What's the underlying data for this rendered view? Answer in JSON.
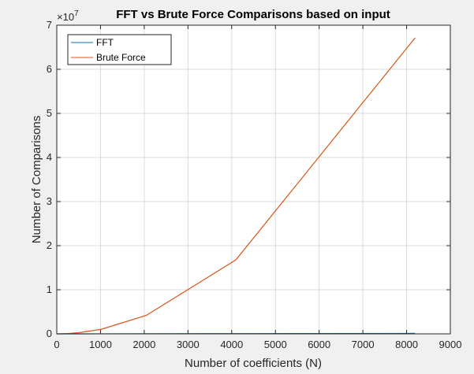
{
  "chart_data": {
    "type": "line",
    "title": "FFT vs Brute Force Comparisons based on input",
    "xlabel": "Number of coefficients (N)",
    "ylabel": "Number of Comparisons",
    "xlim": [
      0,
      9000
    ],
    "ylim": [
      0,
      70000000
    ],
    "xticks": [
      0,
      1000,
      2000,
      3000,
      4000,
      5000,
      6000,
      7000,
      8000,
      9000
    ],
    "xtick_labels": [
      "0",
      "1000",
      "2000",
      "3000",
      "4000",
      "5000",
      "6000",
      "7000",
      "8000",
      "9000"
    ],
    "yticks": [
      0,
      10000000,
      20000000,
      30000000,
      40000000,
      50000000,
      60000000,
      70000000
    ],
    "ytick_labels": [
      "0",
      "1",
      "2",
      "3",
      "4",
      "5",
      "6",
      "7"
    ],
    "y_exponent_base": "×10",
    "y_exponent_power": "7",
    "grid": true,
    "legend_position": "top-left",
    "series": [
      {
        "name": "FFT",
        "color": "#0072BD",
        "x": [
          2,
          4,
          8,
          16,
          32,
          64,
          128,
          256,
          512,
          1024,
          2048,
          4096,
          8192
        ],
        "y": [
          2,
          8,
          24,
          64,
          160,
          384,
          896,
          2048,
          4608,
          10240,
          22528,
          49152,
          106496
        ]
      },
      {
        "name": "Brute Force",
        "color": "#D95319",
        "x": [
          2,
          4,
          8,
          16,
          32,
          64,
          128,
          256,
          512,
          1024,
          2048,
          4096,
          8192
        ],
        "y": [
          4,
          16,
          64,
          256,
          1024,
          4096,
          16384,
          65536,
          262144,
          1048576,
          4194304,
          16777216,
          67108864
        ]
      }
    ]
  }
}
